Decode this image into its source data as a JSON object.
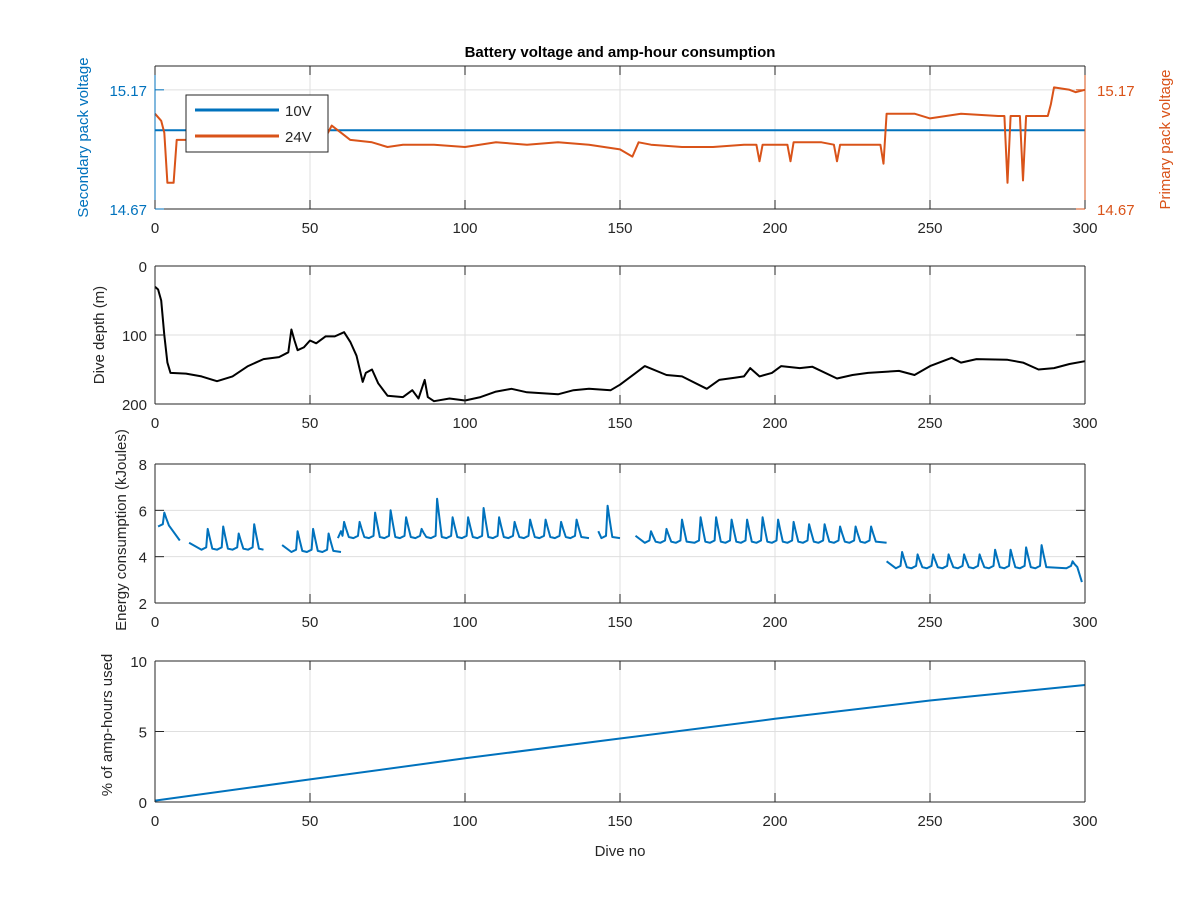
{
  "figure_title": "Battery voltage and amp-hour consumption",
  "colors": {
    "blue": "#0072BD",
    "orange": "#D95319",
    "black": "#000000",
    "axis": "#262626",
    "grid": "#DFDFDF"
  },
  "chart_data": [
    {
      "type": "line",
      "title": "Battery voltage and amp-hour consumption",
      "xlabel": "",
      "ylabel_left": "Secondary pack voltage",
      "ylabel_right": "Primary pack voltage",
      "xlim": [
        0,
        300
      ],
      "ylim": [
        14.67,
        15.27
      ],
      "xticks": [
        0,
        50,
        100,
        150,
        200,
        250,
        300
      ],
      "yticks_left": [
        "14.67",
        "15.17"
      ],
      "yticks_right": [
        "14.67",
        "15.17"
      ],
      "ytick_values": [
        14.67,
        15.17
      ],
      "grid": true,
      "legend": {
        "placement": "top-left",
        "entries": [
          "10V",
          "24V"
        ]
      },
      "series": [
        {
          "name": "10V",
          "color": "#0072BD",
          "axis": "left",
          "points": [
            [
              0,
              15.0
            ],
            [
              300,
              15.0
            ]
          ]
        },
        {
          "name": "24V",
          "color": "#D95319",
          "axis": "right",
          "points": [
            [
              0,
              15.07
            ],
            [
              2,
              15.04
            ],
            [
              3,
              14.99
            ],
            [
              4,
              14.78
            ],
            [
              6,
              14.78
            ],
            [
              7,
              14.96
            ],
            [
              10,
              14.96
            ],
            [
              44,
              14.96
            ],
            [
              45,
              14.93
            ],
            [
              46,
              14.96
            ],
            [
              55,
              14.97
            ],
            [
              57,
              15.02
            ],
            [
              60,
              14.99
            ],
            [
              63,
              14.96
            ],
            [
              70,
              14.95
            ],
            [
              75,
              14.93
            ],
            [
              80,
              14.94
            ],
            [
              90,
              14.94
            ],
            [
              100,
              14.93
            ],
            [
              110,
              14.95
            ],
            [
              120,
              14.94
            ],
            [
              130,
              14.95
            ],
            [
              140,
              14.94
            ],
            [
              150,
              14.92
            ],
            [
              154,
              14.89
            ],
            [
              156,
              14.95
            ],
            [
              160,
              14.94
            ],
            [
              170,
              14.93
            ],
            [
              180,
              14.93
            ],
            [
              190,
              14.94
            ],
            [
              194,
              14.94
            ],
            [
              195,
              14.87
            ],
            [
              196,
              14.94
            ],
            [
              204,
              14.94
            ],
            [
              205,
              14.87
            ],
            [
              206,
              14.95
            ],
            [
              215,
              14.95
            ],
            [
              219,
              14.94
            ],
            [
              220,
              14.87
            ],
            [
              221,
              14.94
            ],
            [
              234,
              14.94
            ],
            [
              235,
              14.86
            ],
            [
              236,
              15.07
            ],
            [
              245,
              15.07
            ],
            [
              250,
              15.05
            ],
            [
              260,
              15.07
            ],
            [
              272,
              15.06
            ],
            [
              274,
              15.06
            ],
            [
              275,
              14.78
            ],
            [
              276,
              15.06
            ],
            [
              279,
              15.06
            ],
            [
              280,
              14.79
            ],
            [
              281,
              15.06
            ],
            [
              288,
              15.06
            ],
            [
              289,
              15.11
            ],
            [
              290,
              15.18
            ],
            [
              295,
              15.17
            ],
            [
              297,
              15.16
            ],
            [
              300,
              15.17
            ]
          ]
        }
      ]
    },
    {
      "type": "line",
      "ylabel": "Dive depth (m)",
      "xlim": [
        0,
        300
      ],
      "ylim": [
        0,
        200
      ],
      "y_reversed": true,
      "xticks": [
        0,
        50,
        100,
        150,
        200,
        250,
        300
      ],
      "yticks": [
        0,
        100,
        200
      ],
      "grid": true,
      "series": [
        {
          "name": "depth",
          "color": "#000000",
          "points": [
            [
              0,
              30
            ],
            [
              1,
              34
            ],
            [
              2,
              50
            ],
            [
              3,
              100
            ],
            [
              4,
              140
            ],
            [
              5,
              155
            ],
            [
              10,
              156
            ],
            [
              15,
              160
            ],
            [
              20,
              167
            ],
            [
              25,
              160
            ],
            [
              30,
              145
            ],
            [
              35,
              135
            ],
            [
              40,
              132
            ],
            [
              43,
              125
            ],
            [
              44,
              92
            ],
            [
              45,
              108
            ],
            [
              46,
              122
            ],
            [
              48,
              118
            ],
            [
              50,
              108
            ],
            [
              52,
              112
            ],
            [
              55,
              102
            ],
            [
              58,
              102
            ],
            [
              61,
              96
            ],
            [
              63,
              110
            ],
            [
              65,
              130
            ],
            [
              67,
              168
            ],
            [
              68,
              155
            ],
            [
              70,
              150
            ],
            [
              72,
              170
            ],
            [
              75,
              188
            ],
            [
              80,
              190
            ],
            [
              83,
              180
            ],
            [
              85,
              192
            ],
            [
              87,
              165
            ],
            [
              88,
              190
            ],
            [
              90,
              196
            ],
            [
              95,
              192
            ],
            [
              100,
              195
            ],
            [
              105,
              190
            ],
            [
              110,
              182
            ],
            [
              115,
              178
            ],
            [
              120,
              183
            ],
            [
              130,
              186
            ],
            [
              135,
              180
            ],
            [
              140,
              178
            ],
            [
              147,
              180
            ],
            [
              150,
              172
            ],
            [
              158,
              145
            ],
            [
              165,
              158
            ],
            [
              170,
              160
            ],
            [
              178,
              178
            ],
            [
              182,
              165
            ],
            [
              187,
              162
            ],
            [
              190,
              160
            ],
            [
              192,
              148
            ],
            [
              195,
              160
            ],
            [
              199,
              155
            ],
            [
              202,
              145
            ],
            [
              208,
              148
            ],
            [
              212,
              146
            ],
            [
              220,
              163
            ],
            [
              225,
              158
            ],
            [
              230,
              155
            ],
            [
              240,
              152
            ],
            [
              245,
              158
            ],
            [
              250,
              145
            ],
            [
              257,
              133
            ],
            [
              260,
              140
            ],
            [
              265,
              135
            ],
            [
              275,
              136
            ],
            [
              280,
              140
            ],
            [
              285,
              150
            ],
            [
              290,
              148
            ],
            [
              295,
              142
            ],
            [
              300,
              138
            ]
          ]
        }
      ]
    },
    {
      "type": "line",
      "ylabel": "Energy consumption (kJoules)",
      "xlim": [
        0,
        300
      ],
      "ylim": [
        2,
        8
      ],
      "xticks": [
        0,
        50,
        100,
        150,
        200,
        250,
        300
      ],
      "yticks": [
        2,
        4,
        6,
        8
      ],
      "grid": true,
      "series": [
        {
          "name": "energy",
          "color": "#0072BD",
          "segments": [
            {
              "start": 1,
              "end": 8,
              "base": 5.3,
              "peaks": [
                [
                  3,
                  5.9
                ]
              ],
              "end_value": 4.7
            },
            {
              "start": 11,
              "end": 35,
              "base": 4.3,
              "peaks": [
                [
                  17,
                  5.2
                ],
                [
                  22,
                  5.3
                ],
                [
                  27,
                  5.0
                ],
                [
                  32,
                  5.4
                ]
              ]
            },
            {
              "start": 41,
              "end": 60,
              "base": 4.2,
              "peaks": [
                [
                  46,
                  5.1
                ],
                [
                  51,
                  5.2
                ],
                [
                  56,
                  5.0
                ]
              ]
            },
            {
              "start": 60,
              "end": 140,
              "base": 4.8,
              "peaks": [
                [
                  61,
                  5.5
                ],
                [
                  66,
                  5.5
                ],
                [
                  71,
                  5.9
                ],
                [
                  76,
                  6.0
                ],
                [
                  81,
                  5.7
                ],
                [
                  86,
                  5.2
                ],
                [
                  91,
                  6.5
                ],
                [
                  96,
                  5.7
                ],
                [
                  101,
                  5.7
                ],
                [
                  106,
                  6.1
                ],
                [
                  111,
                  5.7
                ],
                [
                  116,
                  5.5
                ],
                [
                  121,
                  5.6
                ],
                [
                  126,
                  5.6
                ],
                [
                  131,
                  5.5
                ],
                [
                  136,
                  5.6
                ]
              ]
            },
            {
              "start": 143,
              "end": 150,
              "base": 4.8,
              "peaks": [
                [
                  146,
                  6.2
                ]
              ]
            },
            {
              "start": 155,
              "end": 236,
              "base": 4.6,
              "peaks": [
                [
                  160,
                  5.1
                ],
                [
                  165,
                  5.2
                ],
                [
                  170,
                  5.6
                ],
                [
                  176,
                  5.7
                ],
                [
                  181,
                  5.7
                ],
                [
                  186,
                  5.6
                ],
                [
                  191,
                  5.6
                ],
                [
                  196,
                  5.7
                ],
                [
                  201,
                  5.6
                ],
                [
                  206,
                  5.5
                ],
                [
                  211,
                  5.4
                ],
                [
                  216,
                  5.4
                ],
                [
                  221,
                  5.3
                ],
                [
                  226,
                  5.3
                ],
                [
                  231,
                  5.3
                ]
              ]
            },
            {
              "start": 236,
              "end": 299,
              "base": 3.5,
              "peaks": [
                [
                  241,
                  4.2
                ],
                [
                  246,
                  4.1
                ],
                [
                  251,
                  4.1
                ],
                [
                  256,
                  4.1
                ],
                [
                  261,
                  4.1
                ],
                [
                  266,
                  4.1
                ],
                [
                  271,
                  4.3
                ],
                [
                  276,
                  4.3
                ],
                [
                  281,
                  4.4
                ],
                [
                  286,
                  4.5
                ],
                [
                  296,
                  3.8
                ]
              ],
              "end_value": 2.9
            }
          ]
        }
      ]
    },
    {
      "type": "line",
      "ylabel": "% of amp-hours used",
      "xlabel": "Dive no",
      "xlim": [
        0,
        300
      ],
      "ylim": [
        0,
        10
      ],
      "xticks": [
        0,
        50,
        100,
        150,
        200,
        250,
        300
      ],
      "yticks": [
        0,
        5,
        10
      ],
      "grid": true,
      "series": [
        {
          "name": "amp-hours",
          "color": "#0072BD",
          "points": [
            [
              0,
              0.1
            ],
            [
              50,
              1.6
            ],
            [
              100,
              3.1
            ],
            [
              150,
              4.5
            ],
            [
              200,
              5.9
            ],
            [
              250,
              7.2
            ],
            [
              300,
              8.3
            ]
          ]
        }
      ]
    }
  ]
}
